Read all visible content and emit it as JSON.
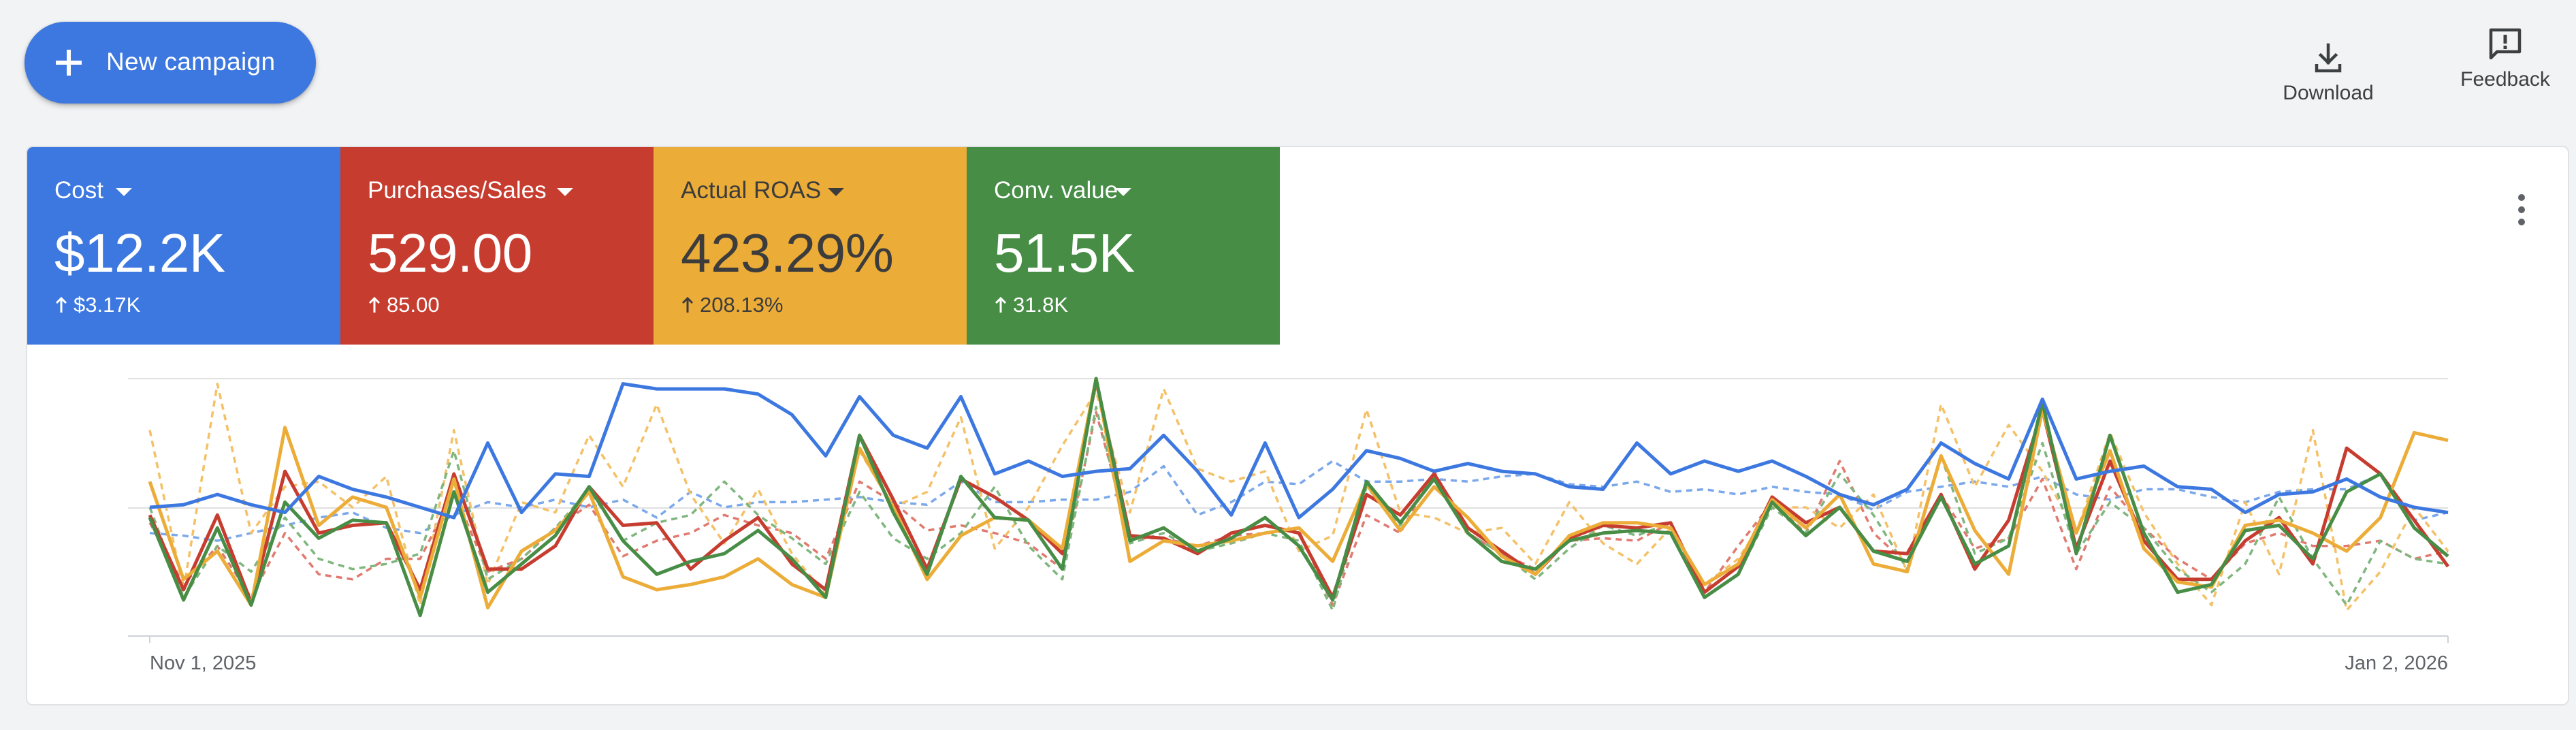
{
  "toolbar": {
    "new_campaign_label": "New campaign",
    "download_label": "Download",
    "feedback_label": "Feedback"
  },
  "metrics": [
    {
      "name": "Cost",
      "value": "$12.2K",
      "delta": "$3.17K",
      "color": "#3c78e0"
    },
    {
      "name": "Purchases/Sales",
      "value": "529.00",
      "delta": "85.00",
      "color": "#c63d30"
    },
    {
      "name": "Actual ROAS",
      "value": "423.29%",
      "delta": "208.13%",
      "color": "#ecac38"
    },
    {
      "name": "Conv. value",
      "value": "51.5K",
      "delta": "31.8K",
      "color": "#478d46"
    }
  ],
  "chart_data": {
    "type": "line",
    "x_start_label": "Nov 1, 2025",
    "x_end_label": "Jan 2, 2026",
    "ylim": [
      0,
      100
    ],
    "grid": true,
    "series": [
      {
        "color": "#3c78e0",
        "style": "solid",
        "values": [
          50,
          51,
          55,
          51,
          48,
          62,
          57,
          54,
          50,
          46,
          75,
          48,
          63,
          62,
          98,
          96,
          96,
          96,
          94,
          86,
          70,
          93,
          78,
          73,
          93,
          63,
          68,
          62,
          64,
          65,
          78,
          64,
          47,
          75,
          46,
          57,
          72,
          69,
          64,
          67,
          64,
          63,
          58,
          57,
          75,
          63,
          68,
          64,
          68,
          62,
          55,
          51,
          57,
          75,
          67,
          61,
          92,
          61,
          64,
          66,
          58,
          57,
          48,
          55,
          56,
          61,
          54,
          50,
          48
        ]
      },
      {
        "color": "#c63d30",
        "style": "solid",
        "values": [
          47,
          18,
          47,
          13,
          64,
          40,
          43,
          44,
          18,
          63,
          26,
          26,
          35,
          58,
          43,
          44,
          26,
          37,
          46,
          28,
          18,
          78,
          53,
          26,
          61,
          54,
          45,
          32,
          99,
          39,
          38,
          32,
          40,
          43,
          40,
          15,
          55,
          47,
          63,
          42,
          33,
          24,
          38,
          43,
          42,
          44,
          17,
          27,
          54,
          44,
          50,
          33,
          32,
          55,
          26,
          45,
          88,
          34,
          68,
          37,
          22,
          22,
          37,
          46,
          28,
          73,
          63,
          45,
          27
        ]
      },
      {
        "color": "#ecac38",
        "style": "solid",
        "values": [
          60,
          22,
          33,
          12,
          81,
          43,
          54,
          50,
          15,
          61,
          11,
          33,
          41,
          56,
          23,
          18,
          20,
          23,
          30,
          20,
          15,
          73,
          50,
          22,
          39,
          46,
          45,
          34,
          100,
          29,
          37,
          35,
          37,
          40,
          42,
          29,
          59,
          41,
          58,
          46,
          31,
          24,
          39,
          44,
          44,
          42,
          20,
          28,
          53,
          42,
          55,
          28,
          25,
          70,
          41,
          24,
          88,
          40,
          72,
          34,
          21,
          19,
          43,
          45,
          40,
          33,
          46,
          79,
          76
        ]
      },
      {
        "color": "#478d46",
        "style": "solid",
        "values": [
          46,
          14,
          42,
          12,
          52,
          38,
          45,
          44,
          8,
          56,
          17,
          28,
          39,
          58,
          37,
          24,
          29,
          32,
          41,
          30,
          15,
          78,
          48,
          24,
          62,
          46,
          45,
          26,
          100,
          37,
          42,
          33,
          38,
          46,
          35,
          14,
          60,
          44,
          61,
          40,
          29,
          26,
          37,
          40,
          41,
          40,
          15,
          24,
          52,
          39,
          50,
          33,
          29,
          54,
          28,
          35,
          91,
          32,
          78,
          40,
          17,
          20,
          41,
          43,
          30,
          56,
          63,
          42,
          31
        ]
      },
      {
        "color": "#7ba8ea",
        "style": "dashed",
        "values": [
          40,
          39,
          37,
          40,
          43,
          46,
          48,
          42,
          40,
          47,
          52,
          50,
          53,
          50,
          53,
          46,
          56,
          50,
          52,
          52,
          53,
          54,
          52,
          51,
          60,
          52,
          52,
          53,
          53,
          56,
          66,
          47,
          52,
          60,
          59,
          68,
          60,
          60,
          61,
          60,
          62,
          63,
          59,
          58,
          60,
          56,
          57,
          55,
          58,
          56,
          55,
          49,
          56,
          58,
          60,
          58,
          62,
          55,
          53,
          57,
          57,
          54,
          52,
          56,
          57,
          57,
          63,
          45,
          48
        ]
      },
      {
        "color": "#e07a70",
        "style": "dashed",
        "values": [
          44,
          20,
          35,
          15,
          40,
          24,
          22,
          30,
          30,
          56,
          25,
          30,
          42,
          51,
          31,
          37,
          40,
          47,
          43,
          40,
          30,
          60,
          52,
          41,
          43,
          40,
          36,
          26,
          87,
          38,
          38,
          35,
          39,
          40,
          41,
          12,
          47,
          40,
          64,
          40,
          32,
          26,
          37,
          38,
          37,
          44,
          17,
          35,
          52,
          40,
          68,
          40,
          28,
          55,
          34,
          38,
          61,
          26,
          58,
          42,
          30,
          22,
          36,
          40,
          35,
          35,
          37,
          30,
          33
        ]
      },
      {
        "color": "#f4c168",
        "style": "dashed",
        "values": [
          80,
          18,
          98,
          40,
          58,
          60,
          50,
          62,
          12,
          80,
          20,
          52,
          48,
          78,
          58,
          90,
          55,
          36,
          57,
          32,
          16,
          72,
          50,
          56,
          85,
          34,
          50,
          74,
          95,
          48,
          96,
          65,
          60,
          64,
          33,
          39,
          88,
          48,
          46,
          40,
          42,
          28,
          52,
          36,
          28,
          42,
          20,
          30,
          50,
          50,
          42,
          55,
          25,
          90,
          58,
          82,
          64,
          40,
          79,
          48,
          28,
          12,
          52,
          24,
          80,
          10,
          25,
          50,
          33
        ]
      },
      {
        "color": "#7fb67e",
        "style": "dashed",
        "values": [
          50,
          15,
          35,
          25,
          46,
          30,
          26,
          28,
          32,
          72,
          22,
          30,
          42,
          57,
          37,
          44,
          47,
          60,
          47,
          38,
          28,
          56,
          38,
          30,
          40,
          58,
          35,
          22,
          89,
          36,
          40,
          33,
          36,
          40,
          37,
          10,
          58,
          43,
          63,
          40,
          32,
          22,
          34,
          43,
          39,
          44,
          15,
          24,
          50,
          40,
          63,
          47,
          26,
          70,
          32,
          38,
          75,
          32,
          52,
          42,
          26,
          17,
          28,
          54,
          30,
          12,
          37,
          30,
          28
        ]
      }
    ]
  }
}
